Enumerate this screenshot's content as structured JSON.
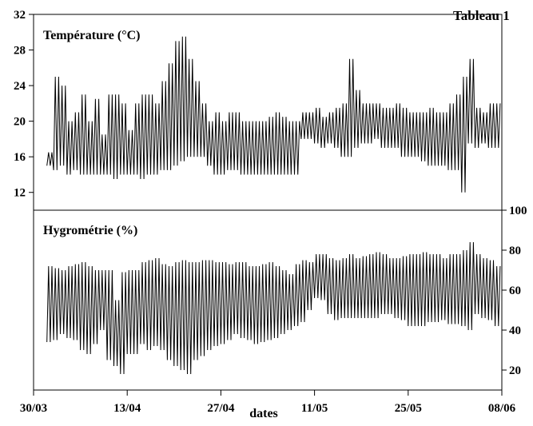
{
  "figure_title": "Tableau 1",
  "chart_data": [
    {
      "type": "line",
      "title": "Température (°C)",
      "xlabel": "dates",
      "ylabel": "",
      "x_tick_labels": [
        "30/03",
        "13/04",
        "27/04",
        "11/05",
        "25/05",
        "08/06"
      ],
      "xlim": [
        "30/03",
        "08/06"
      ],
      "y_tick_labels": [
        "12",
        "16",
        "20",
        "24",
        "28",
        "32"
      ],
      "ylim": [
        10,
        32
      ],
      "y_axis_side": "left",
      "grid": false,
      "series": [
        {
          "x": [
            "01/04",
            "02/04",
            "03/04",
            "04/04",
            "05/04",
            "06/04",
            "07/04",
            "08/04",
            "09/04",
            "10/04",
            "11/04",
            "12/04",
            "13/04",
            "14/04",
            "15/04",
            "16/04",
            "17/04",
            "18/04",
            "19/04",
            "20/04",
            "21/04",
            "22/04",
            "23/04",
            "24/04",
            "25/04",
            "26/04",
            "27/04",
            "28/04",
            "29/04",
            "30/04",
            "01/05",
            "02/05",
            "03/05",
            "04/05",
            "05/05",
            "06/05",
            "07/05",
            "08/05",
            "09/05",
            "10/05",
            "11/05",
            "12/05",
            "13/05",
            "14/05",
            "15/05",
            "16/05",
            "17/05",
            "18/05",
            "19/05",
            "20/05",
            "21/05",
            "22/05",
            "23/05",
            "24/05",
            "25/05",
            "26/05",
            "27/05",
            "28/05",
            "29/05",
            "30/05",
            "31/05",
            "01/06",
            "02/06",
            "03/06",
            "04/06",
            "05/06",
            "06/06",
            "07/06"
          ],
          "min": [
            15,
            14.5,
            15,
            14,
            14.5,
            14,
            14,
            14,
            14,
            14,
            13.5,
            14,
            14,
            14,
            13.5,
            14,
            14,
            14.5,
            14.5,
            15,
            15.5,
            16,
            16,
            16,
            15,
            14,
            14,
            14.5,
            14.5,
            14,
            14,
            14,
            14,
            14,
            14,
            14,
            14,
            14,
            18,
            18,
            17.5,
            17,
            17.5,
            17,
            16,
            16,
            17,
            17.5,
            17.5,
            18,
            17,
            17,
            17,
            16,
            16,
            16,
            15.5,
            15,
            15,
            15,
            14.5,
            14.5,
            12,
            17.5,
            17,
            17.5,
            17,
            17
          ],
          "max": [
            16.5,
            25,
            24,
            20,
            21,
            23,
            20,
            22.5,
            18.5,
            23,
            23,
            22,
            19,
            22,
            23,
            23,
            22,
            24.5,
            26.5,
            29,
            29.5,
            27,
            24.5,
            22,
            20,
            21,
            20,
            21,
            21,
            20,
            20,
            20,
            20,
            20.5,
            21,
            20.5,
            20,
            20,
            21,
            21,
            21.5,
            20.5,
            21,
            21.5,
            22,
            27,
            23.5,
            22,
            22,
            22,
            21.5,
            21.5,
            22,
            21.5,
            21,
            21,
            21,
            21.5,
            21,
            21,
            22,
            23,
            25,
            27,
            21.5,
            21,
            22,
            22
          ]
        }
      ]
    },
    {
      "type": "line",
      "title": "Hygrométrie (%)",
      "xlabel": "dates",
      "ylabel": "",
      "x_tick_labels": [
        "30/03",
        "13/04",
        "27/04",
        "11/05",
        "25/05",
        "08/06"
      ],
      "xlim": [
        "30/03",
        "08/06"
      ],
      "y_tick_labels": [
        "20",
        "40",
        "60",
        "80",
        "100"
      ],
      "ylim": [
        10,
        100
      ],
      "y_axis_side": "right",
      "grid": false,
      "series": [
        {
          "x": [
            "01/04",
            "02/04",
            "03/04",
            "04/04",
            "05/04",
            "06/04",
            "07/04",
            "08/04",
            "09/04",
            "10/04",
            "11/04",
            "12/04",
            "13/04",
            "14/04",
            "15/04",
            "16/04",
            "17/04",
            "18/04",
            "19/04",
            "20/04",
            "21/04",
            "22/04",
            "23/04",
            "24/04",
            "25/04",
            "26/04",
            "27/04",
            "28/04",
            "29/04",
            "30/04",
            "01/05",
            "02/05",
            "03/05",
            "04/05",
            "05/05",
            "06/05",
            "07/05",
            "08/05",
            "09/05",
            "10/05",
            "11/05",
            "12/05",
            "13/05",
            "14/05",
            "15/05",
            "16/05",
            "17/05",
            "18/05",
            "19/05",
            "20/05",
            "21/05",
            "22/05",
            "23/05",
            "24/05",
            "25/05",
            "26/05",
            "27/05",
            "28/05",
            "29/05",
            "30/05",
            "31/05",
            "01/06",
            "02/06",
            "03/06",
            "04/06",
            "05/06",
            "06/06",
            "07/06"
          ],
          "min": [
            34,
            35,
            38,
            36,
            35,
            30,
            28,
            33,
            40,
            25,
            22,
            18,
            28,
            28,
            33,
            30,
            32,
            30,
            25,
            22,
            20,
            18,
            25,
            27,
            30,
            32,
            33,
            35,
            38,
            36,
            35,
            33,
            34,
            35,
            36,
            38,
            40,
            42,
            44,
            50,
            56,
            55,
            48,
            45,
            46,
            46,
            46,
            46,
            46,
            46,
            48,
            48,
            46,
            45,
            42,
            42,
            42,
            44,
            44,
            45,
            43,
            43,
            42,
            40,
            48,
            46,
            45,
            42
          ],
          "max": [
            72,
            71,
            70,
            72,
            73,
            74,
            72,
            70,
            70,
            70,
            55,
            69,
            70,
            70,
            74,
            75,
            76,
            73,
            72,
            74,
            75,
            74,
            74,
            75,
            75,
            74,
            74,
            73,
            74,
            74,
            72,
            72,
            73,
            74,
            72,
            70,
            68,
            73,
            75,
            74,
            78,
            78,
            76,
            75,
            76,
            78,
            76,
            77,
            78,
            79,
            78,
            76,
            76,
            77,
            78,
            78,
            79,
            78,
            78,
            76,
            78,
            78,
            80,
            84,
            78,
            76,
            75,
            72
          ]
        }
      ]
    }
  ]
}
